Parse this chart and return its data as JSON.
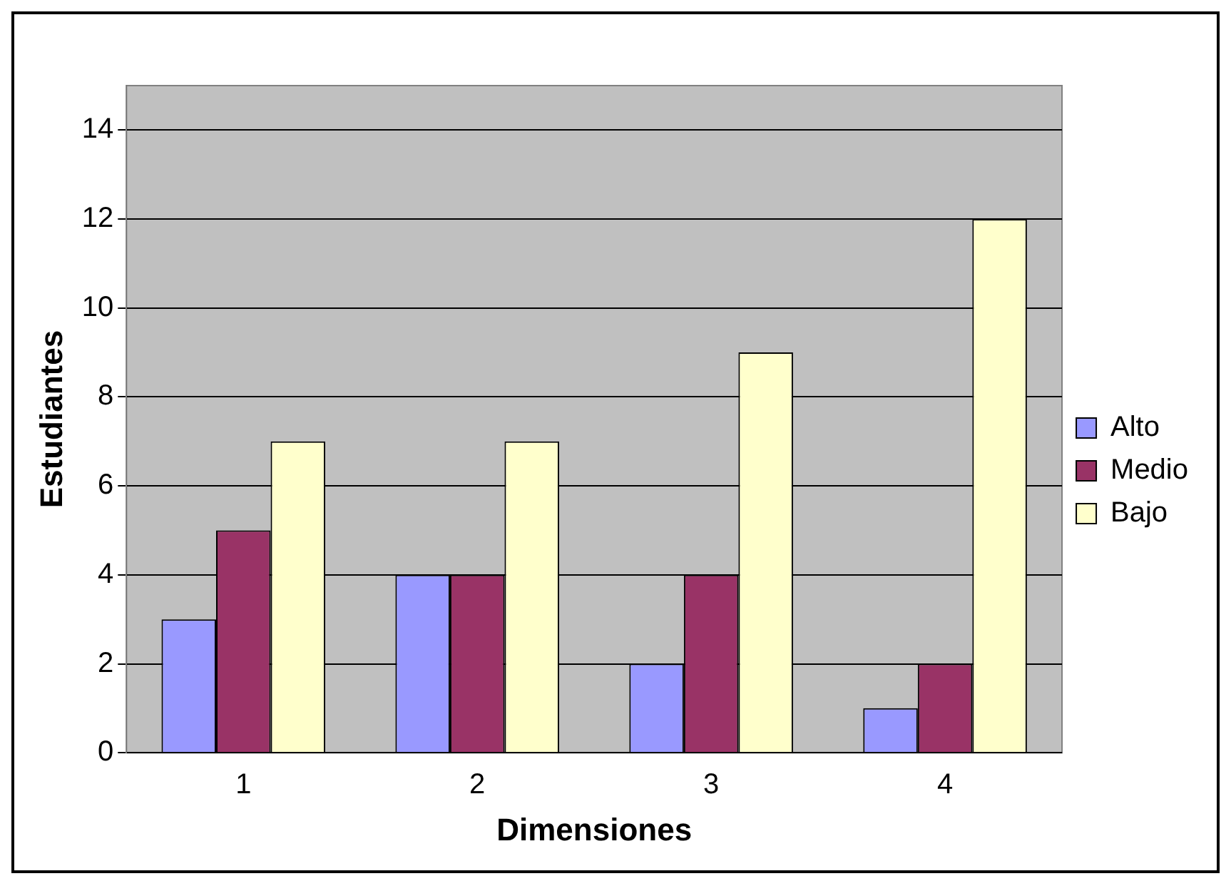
{
  "chart_data": {
    "type": "bar",
    "xlabel": "Dimensiones",
    "ylabel": "Estudiantes",
    "categories": [
      "1",
      "2",
      "3",
      "4"
    ],
    "series": [
      {
        "name": "Alto",
        "color": "#9999ff",
        "values": [
          3,
          4,
          2,
          1
        ]
      },
      {
        "name": "Medio",
        "color": "#993366",
        "values": [
          5,
          4,
          4,
          2
        ]
      },
      {
        "name": "Bajo",
        "color": "#ffffcc",
        "values": [
          7,
          7,
          9,
          12
        ]
      }
    ],
    "ylim": [
      0,
      15
    ],
    "yticks": [
      0,
      2,
      4,
      6,
      8,
      10,
      12,
      14
    ],
    "grid": "y",
    "legend": "right"
  }
}
